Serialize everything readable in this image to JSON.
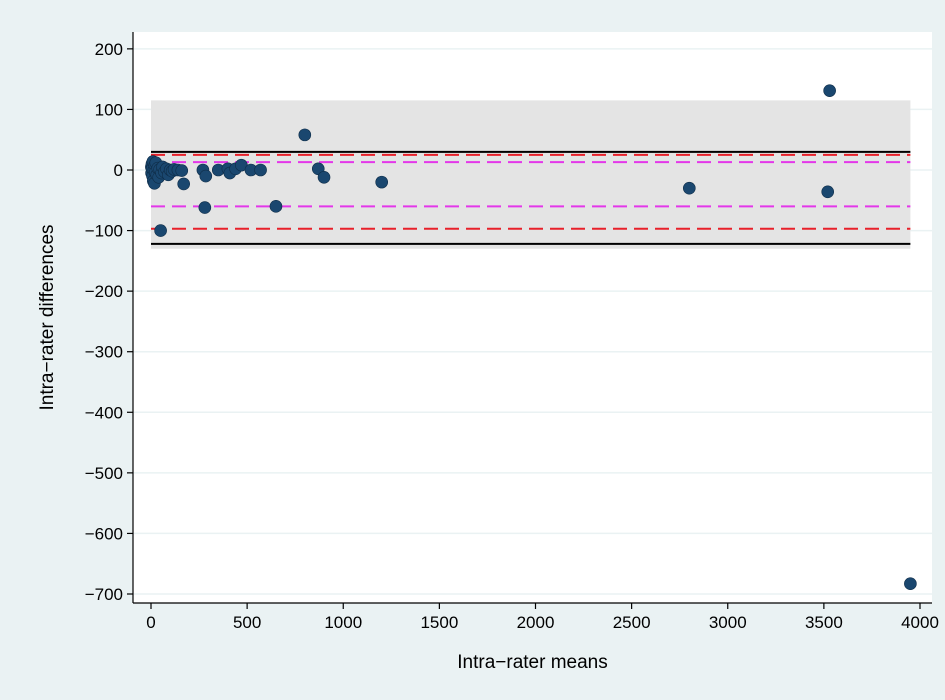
{
  "chart_data": {
    "type": "scatter",
    "title": "",
    "xlabel": "Intra−rater means",
    "ylabel": "Intra−rater differences",
    "xlim": [
      0,
      4000
    ],
    "ylim": [
      -700,
      200
    ],
    "x_ticks": [
      0,
      500,
      1000,
      1500,
      2000,
      2500,
      3000,
      3500,
      4000
    ],
    "y_ticks": [
      200,
      100,
      0,
      -100,
      -200,
      -300,
      -400,
      -500,
      -600,
      -700
    ],
    "x_tick_labels": [
      "0",
      "500",
      "1000",
      "1500",
      "2000",
      "2500",
      "3000",
      "3500",
      "4000"
    ],
    "y_tick_labels": [
      "200",
      "100",
      "0",
      "−100",
      "−200",
      "−300",
      "−400",
      "−500",
      "−600",
      "−700"
    ],
    "grid": true,
    "colors": {
      "background": "#eaf2f3",
      "plot_background": "#ffffff",
      "grid": "#eaf2f3",
      "band": "#e4e4e4",
      "points": "#1a476f",
      "loa_line": "#000000",
      "ci_outer": "#e8202a",
      "ci_inner": "#e337e9"
    },
    "band": {
      "x": [
        0,
        3950
      ],
      "y": [
        -130,
        115
      ]
    },
    "reference_lines": [
      {
        "kind": "solid",
        "color": "#000000",
        "y": 30
      },
      {
        "kind": "solid",
        "color": "#000000",
        "y": -122
      },
      {
        "kind": "dashed",
        "color": "#e8202a",
        "y": 25
      },
      {
        "kind": "dashed",
        "color": "#e8202a",
        "y": -97
      },
      {
        "kind": "dashed",
        "color": "#e337e9",
        "y": 13
      },
      {
        "kind": "dashed",
        "color": "#e337e9",
        "y": -60
      }
    ],
    "points": [
      {
        "x": 2,
        "y": 5
      },
      {
        "x": 3,
        "y": -5
      },
      {
        "x": 5,
        "y": 10
      },
      {
        "x": 6,
        "y": 2
      },
      {
        "x": 8,
        "y": -10
      },
      {
        "x": 10,
        "y": 14
      },
      {
        "x": 12,
        "y": -18
      },
      {
        "x": 15,
        "y": 0
      },
      {
        "x": 18,
        "y": -22
      },
      {
        "x": 20,
        "y": 8
      },
      {
        "x": 22,
        "y": -4
      },
      {
        "x": 25,
        "y": 12
      },
      {
        "x": 30,
        "y": -8
      },
      {
        "x": 35,
        "y": 3
      },
      {
        "x": 40,
        "y": -12
      },
      {
        "x": 45,
        "y": 1
      },
      {
        "x": 50,
        "y": -100
      },
      {
        "x": 55,
        "y": -5
      },
      {
        "x": 60,
        "y": 5
      },
      {
        "x": 70,
        "y": -3
      },
      {
        "x": 80,
        "y": 2
      },
      {
        "x": 90,
        "y": -8
      },
      {
        "x": 100,
        "y": 0
      },
      {
        "x": 110,
        "y": -2
      },
      {
        "x": 120,
        "y": 1
      },
      {
        "x": 140,
        "y": 0
      },
      {
        "x": 160,
        "y": -1
      },
      {
        "x": 170,
        "y": -23
      },
      {
        "x": 270,
        "y": 0
      },
      {
        "x": 280,
        "y": -62
      },
      {
        "x": 285,
        "y": -10
      },
      {
        "x": 350,
        "y": 0
      },
      {
        "x": 400,
        "y": 2
      },
      {
        "x": 410,
        "y": -5
      },
      {
        "x": 440,
        "y": 2
      },
      {
        "x": 470,
        "y": 8
      },
      {
        "x": 520,
        "y": 0
      },
      {
        "x": 570,
        "y": 0
      },
      {
        "x": 650,
        "y": -60
      },
      {
        "x": 800,
        "y": 58
      },
      {
        "x": 870,
        "y": 2
      },
      {
        "x": 900,
        "y": -12
      },
      {
        "x": 1200,
        "y": -20
      },
      {
        "x": 2800,
        "y": -30
      },
      {
        "x": 3520,
        "y": -36
      },
      {
        "x": 3530,
        "y": 131
      },
      {
        "x": 3950,
        "y": -683
      }
    ]
  }
}
